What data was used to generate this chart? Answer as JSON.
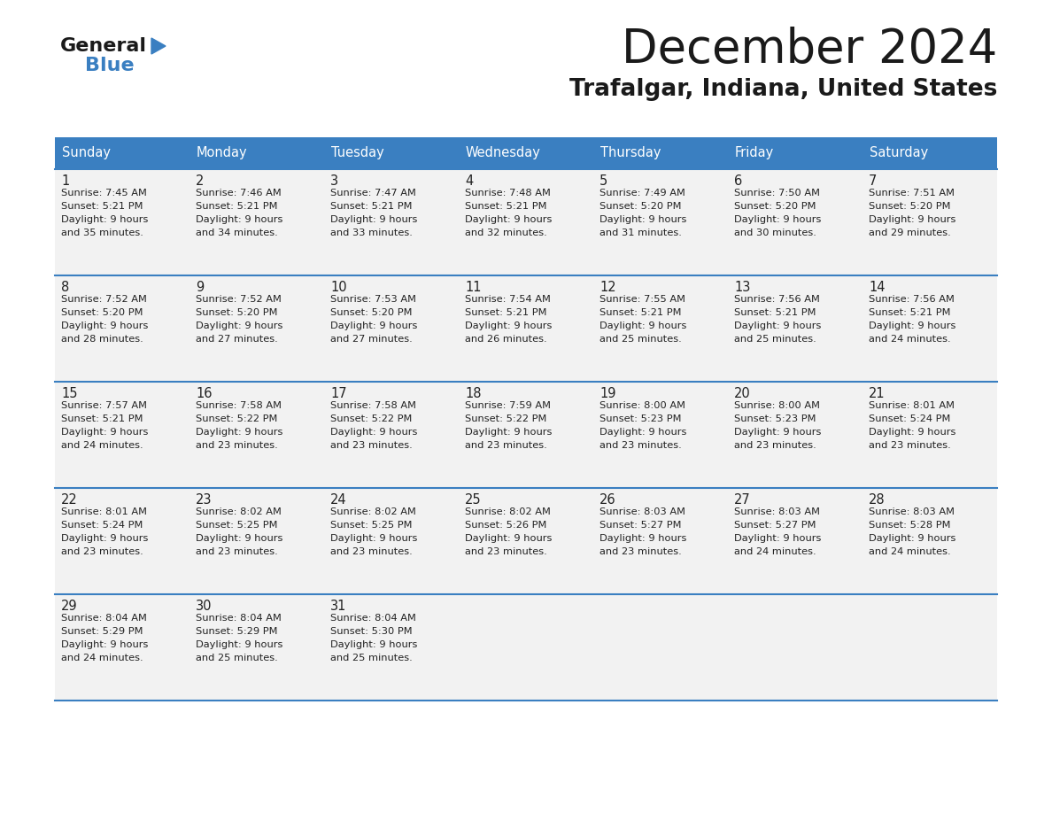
{
  "title": "December 2024",
  "subtitle": "Trafalgar, Indiana, United States",
  "days_of_week": [
    "Sunday",
    "Monday",
    "Tuesday",
    "Wednesday",
    "Thursday",
    "Friday",
    "Saturday"
  ],
  "header_bg": "#3a7fc1",
  "header_text": "#ffffff",
  "cell_bg": "#f2f2f2",
  "cell_text": "#222222",
  "border_color": "#3a7fc1",
  "title_color": "#1a1a1a",
  "subtitle_color": "#1a1a1a",
  "calendar": [
    [
      {
        "day": 1,
        "sunrise": "7:45 AM",
        "sunset": "5:21 PM",
        "daylight_min": "35"
      },
      {
        "day": 2,
        "sunrise": "7:46 AM",
        "sunset": "5:21 PM",
        "daylight_min": "34"
      },
      {
        "day": 3,
        "sunrise": "7:47 AM",
        "sunset": "5:21 PM",
        "daylight_min": "33"
      },
      {
        "day": 4,
        "sunrise": "7:48 AM",
        "sunset": "5:21 PM",
        "daylight_min": "32"
      },
      {
        "day": 5,
        "sunrise": "7:49 AM",
        "sunset": "5:20 PM",
        "daylight_min": "31"
      },
      {
        "day": 6,
        "sunrise": "7:50 AM",
        "sunset": "5:20 PM",
        "daylight_min": "30"
      },
      {
        "day": 7,
        "sunrise": "7:51 AM",
        "sunset": "5:20 PM",
        "daylight_min": "29"
      }
    ],
    [
      {
        "day": 8,
        "sunrise": "7:52 AM",
        "sunset": "5:20 PM",
        "daylight_min": "28"
      },
      {
        "day": 9,
        "sunrise": "7:52 AM",
        "sunset": "5:20 PM",
        "daylight_min": "27"
      },
      {
        "day": 10,
        "sunrise": "7:53 AM",
        "sunset": "5:20 PM",
        "daylight_min": "27"
      },
      {
        "day": 11,
        "sunrise": "7:54 AM",
        "sunset": "5:21 PM",
        "daylight_min": "26"
      },
      {
        "day": 12,
        "sunrise": "7:55 AM",
        "sunset": "5:21 PM",
        "daylight_min": "25"
      },
      {
        "day": 13,
        "sunrise": "7:56 AM",
        "sunset": "5:21 PM",
        "daylight_min": "25"
      },
      {
        "day": 14,
        "sunrise": "7:56 AM",
        "sunset": "5:21 PM",
        "daylight_min": "24"
      }
    ],
    [
      {
        "day": 15,
        "sunrise": "7:57 AM",
        "sunset": "5:21 PM",
        "daylight_min": "24"
      },
      {
        "day": 16,
        "sunrise": "7:58 AM",
        "sunset": "5:22 PM",
        "daylight_min": "23"
      },
      {
        "day": 17,
        "sunrise": "7:58 AM",
        "sunset": "5:22 PM",
        "daylight_min": "23"
      },
      {
        "day": 18,
        "sunrise": "7:59 AM",
        "sunset": "5:22 PM",
        "daylight_min": "23"
      },
      {
        "day": 19,
        "sunrise": "8:00 AM",
        "sunset": "5:23 PM",
        "daylight_min": "23"
      },
      {
        "day": 20,
        "sunrise": "8:00 AM",
        "sunset": "5:23 PM",
        "daylight_min": "23"
      },
      {
        "day": 21,
        "sunrise": "8:01 AM",
        "sunset": "5:24 PM",
        "daylight_min": "23"
      }
    ],
    [
      {
        "day": 22,
        "sunrise": "8:01 AM",
        "sunset": "5:24 PM",
        "daylight_min": "23"
      },
      {
        "day": 23,
        "sunrise": "8:02 AM",
        "sunset": "5:25 PM",
        "daylight_min": "23"
      },
      {
        "day": 24,
        "sunrise": "8:02 AM",
        "sunset": "5:25 PM",
        "daylight_min": "23"
      },
      {
        "day": 25,
        "sunrise": "8:02 AM",
        "sunset": "5:26 PM",
        "daylight_min": "23"
      },
      {
        "day": 26,
        "sunrise": "8:03 AM",
        "sunset": "5:27 PM",
        "daylight_min": "23"
      },
      {
        "day": 27,
        "sunrise": "8:03 AM",
        "sunset": "5:27 PM",
        "daylight_min": "24"
      },
      {
        "day": 28,
        "sunrise": "8:03 AM",
        "sunset": "5:28 PM",
        "daylight_min": "24"
      }
    ],
    [
      {
        "day": 29,
        "sunrise": "8:04 AM",
        "sunset": "5:29 PM",
        "daylight_min": "24"
      },
      {
        "day": 30,
        "sunrise": "8:04 AM",
        "sunset": "5:29 PM",
        "daylight_min": "25"
      },
      {
        "day": 31,
        "sunrise": "8:04 AM",
        "sunset": "5:30 PM",
        "daylight_min": "25"
      },
      null,
      null,
      null,
      null
    ]
  ]
}
